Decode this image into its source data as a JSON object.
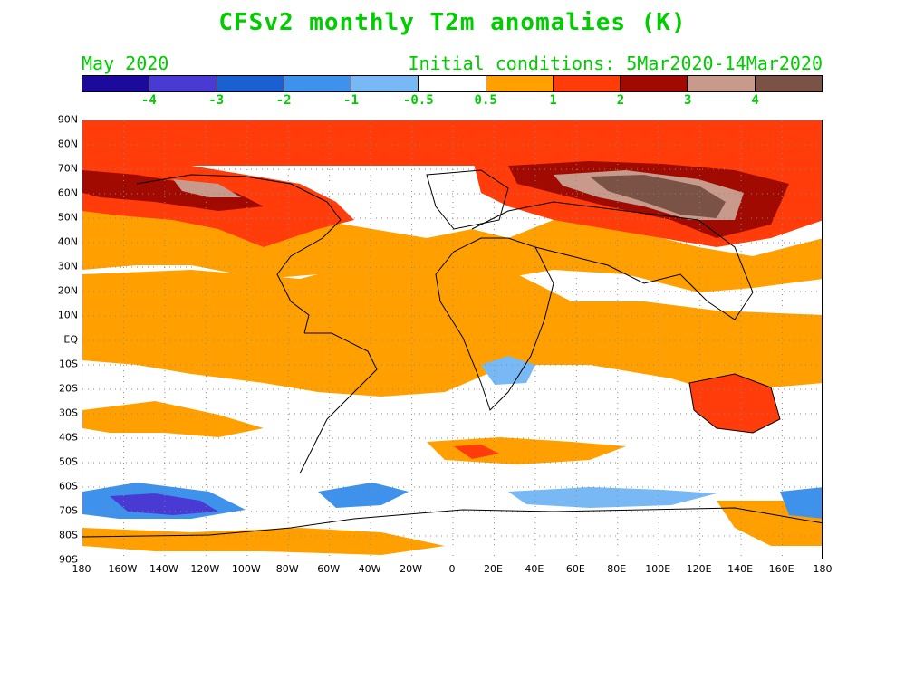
{
  "header": {
    "title": "CFSv2 monthly T2m anomalies (K)",
    "month": "May 2020",
    "initial_conditions": "Initial conditions: 5Mar2020-14Mar2020"
  },
  "colorbar": {
    "colors": [
      "#1c0a9c",
      "#4a3ad4",
      "#1a60d0",
      "#3f92ec",
      "#78b8f4",
      "#ffffff",
      "#ffa000",
      "#ff3c0a",
      "#a00a00",
      "#c89a8c",
      "#7a5246"
    ],
    "labels": [
      "-4",
      "-3",
      "-2",
      "-1",
      "-0.5",
      "0.5",
      "1",
      "2",
      "3",
      "4"
    ]
  },
  "axes": {
    "lat_labels": [
      "90N",
      "80N",
      "70N",
      "60N",
      "50N",
      "40N",
      "30N",
      "20N",
      "10N",
      "EQ",
      "10S",
      "20S",
      "30S",
      "40S",
      "50S",
      "60S",
      "70S",
      "80S",
      "90S"
    ],
    "lon_labels": [
      "180",
      "160W",
      "140W",
      "120W",
      "100W",
      "80W",
      "60W",
      "40W",
      "20W",
      "0",
      "20E",
      "40E",
      "60E",
      "80E",
      "100E",
      "120E",
      "140E",
      "160E",
      "180"
    ]
  },
  "map": {
    "projection": "equirectangular",
    "lon_range": [
      -180,
      180
    ],
    "lat_range": [
      -90,
      90
    ],
    "gridlines": "dotted"
  }
}
